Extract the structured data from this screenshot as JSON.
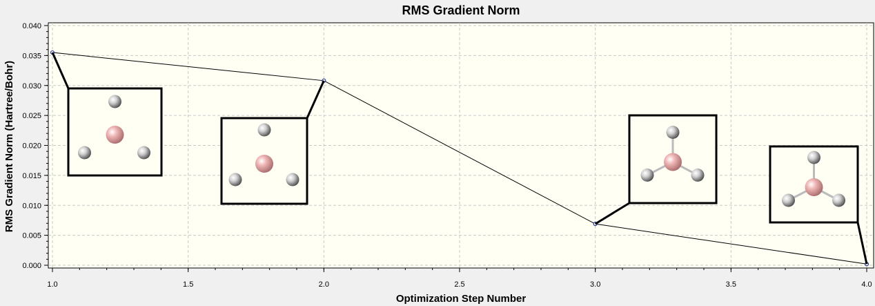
{
  "chart_data": {
    "type": "line",
    "title": "RMS Gradient Norm",
    "xlabel": "Optimization Step Number",
    "ylabel": "RMS Gradient Norm (Hartree/Bohr)",
    "x": [
      1.0,
      2.0,
      3.0,
      4.0
    ],
    "series": [
      {
        "values": [
          0.0355,
          0.0308,
          0.0069,
          0.0002
        ]
      }
    ],
    "xlim": [
      1.0,
      4.0
    ],
    "ylim": [
      0.0,
      0.04
    ],
    "xticks": [
      "1.0",
      "1.5",
      "2.0",
      "2.5",
      "3.0",
      "3.5",
      "4.0"
    ],
    "yticks": [
      "0.000",
      "0.005",
      "0.010",
      "0.015",
      "0.020",
      "0.025",
      "0.030",
      "0.035",
      "0.040"
    ],
    "grid": true,
    "colors": {
      "plot_background": "#fffff4",
      "line": "#000000",
      "marker": "#2a3a8c",
      "grid": "#c8c8c8",
      "boron_atom": "#e8a8a8",
      "hydrogen_atom": "#c8c8c8"
    },
    "annotations": [
      {
        "type": "molecule-thumbnail",
        "step": 1,
        "molecule": "BH3",
        "bonds_shown": false
      },
      {
        "type": "molecule-thumbnail",
        "step": 2,
        "molecule": "BH3",
        "bonds_shown": false
      },
      {
        "type": "molecule-thumbnail",
        "step": 3,
        "molecule": "BH3",
        "bonds_shown": true
      },
      {
        "type": "molecule-thumbnail",
        "step": 4,
        "molecule": "BH3",
        "bonds_shown": true
      }
    ]
  }
}
